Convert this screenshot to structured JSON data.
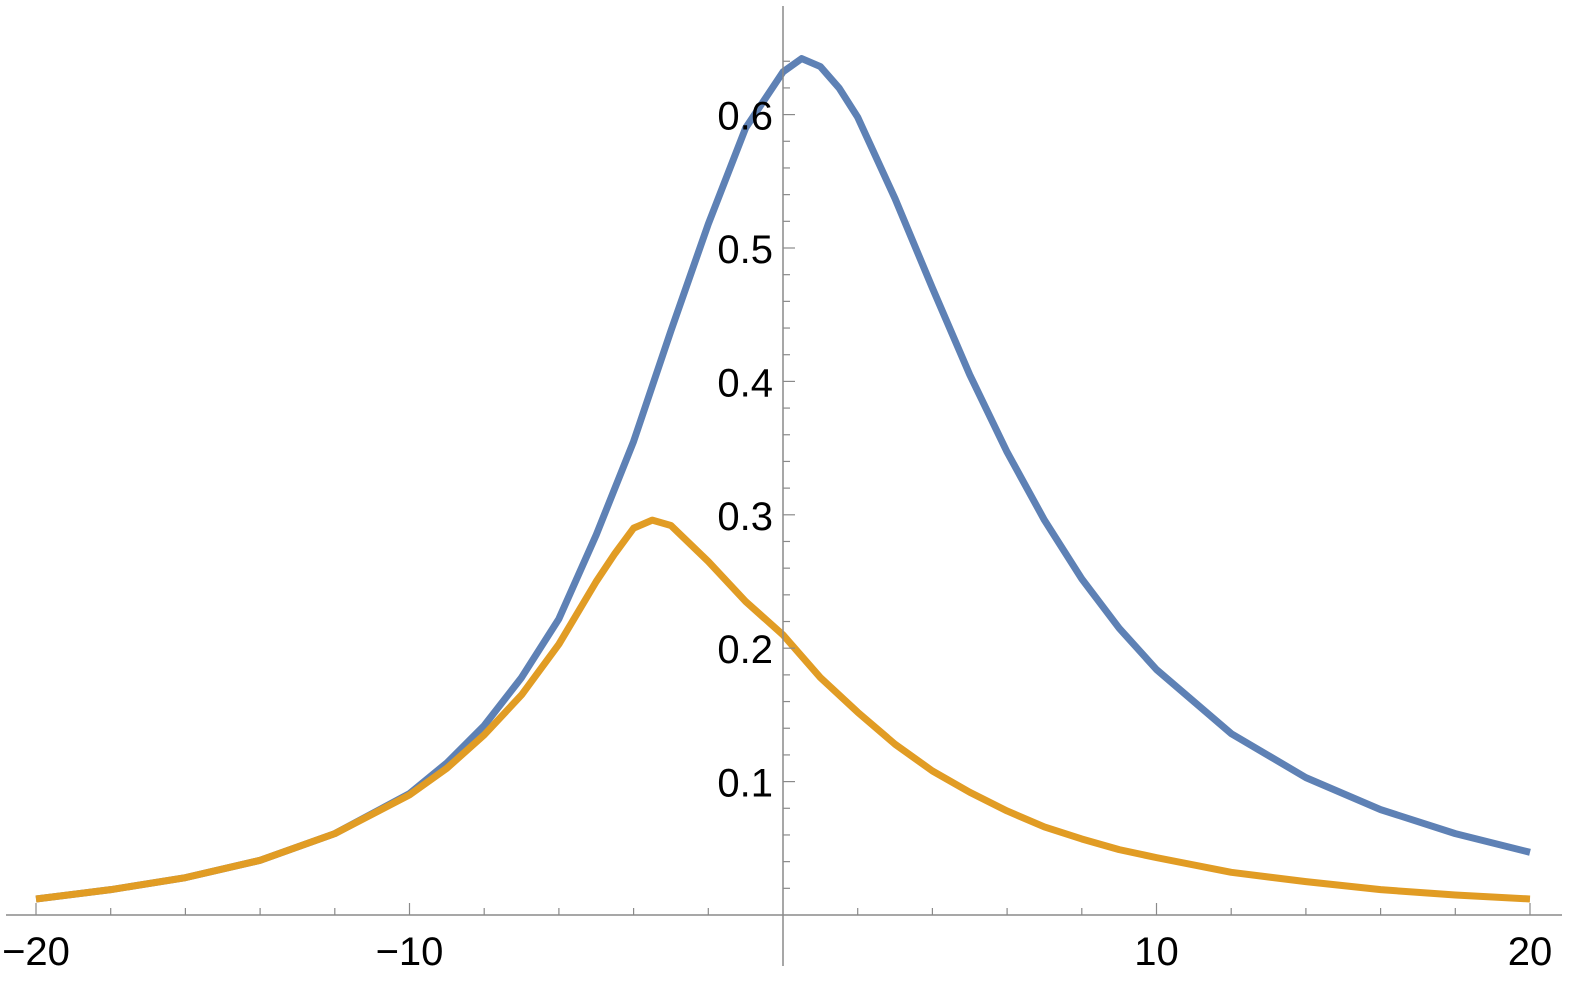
{
  "chart_data": {
    "type": "line",
    "title": "",
    "xlabel": "",
    "ylabel": "",
    "xlim": [
      -20,
      20
    ],
    "ylim": [
      0,
      0.65
    ],
    "grid": false,
    "legend": "none",
    "x_ticks": [
      {
        "value": -20,
        "label": "−20"
      },
      {
        "value": -10,
        "label": "−10"
      },
      {
        "value": 10,
        "label": "10"
      },
      {
        "value": 20,
        "label": "20"
      }
    ],
    "y_ticks": [
      {
        "value": 0.1,
        "label": "0.1"
      },
      {
        "value": 0.2,
        "label": "0.2"
      },
      {
        "value": 0.3,
        "label": "0.3"
      },
      {
        "value": 0.4,
        "label": "0.4"
      },
      {
        "value": 0.5,
        "label": "0.5"
      },
      {
        "value": 0.6,
        "label": "0.6"
      }
    ],
    "x_minor_step": 2,
    "y_minor_step": 0.02,
    "series": [
      {
        "color": "#5E81B5",
        "x": [
          -20,
          -18,
          -16,
          -14,
          -12,
          -10,
          -9,
          -8,
          -7,
          -6,
          -5,
          -4,
          -3,
          -2,
          -1,
          0,
          0.5,
          1,
          1.5,
          2,
          3,
          4,
          5,
          6,
          7,
          8,
          9,
          10,
          12,
          14,
          16,
          18,
          20
        ],
        "y": [
          0.012,
          0.019,
          0.028,
          0.041,
          0.061,
          0.091,
          0.114,
          0.142,
          0.178,
          0.222,
          0.285,
          0.355,
          0.438,
          0.518,
          0.59,
          0.632,
          0.642,
          0.636,
          0.62,
          0.598,
          0.537,
          0.47,
          0.405,
          0.347,
          0.296,
          0.252,
          0.215,
          0.184,
          0.136,
          0.103,
          0.079,
          0.061,
          0.047
        ]
      },
      {
        "color": "#E19C24",
        "x": [
          -20,
          -18,
          -16,
          -14,
          -12,
          -10,
          -9,
          -8,
          -7,
          -6,
          -5,
          -4.5,
          -4,
          -3.5,
          -3,
          -2,
          -1,
          0,
          1,
          2,
          3,
          4,
          5,
          6,
          7,
          8,
          9,
          10,
          12,
          14,
          16,
          18,
          20
        ],
        "y": [
          0.012,
          0.019,
          0.028,
          0.041,
          0.061,
          0.09,
          0.11,
          0.135,
          0.165,
          0.203,
          0.25,
          0.271,
          0.29,
          0.296,
          0.292,
          0.265,
          0.235,
          0.21,
          0.178,
          0.152,
          0.128,
          0.108,
          0.092,
          0.078,
          0.066,
          0.057,
          0.049,
          0.043,
          0.032,
          0.025,
          0.019,
          0.015,
          0.012
        ]
      }
    ]
  }
}
